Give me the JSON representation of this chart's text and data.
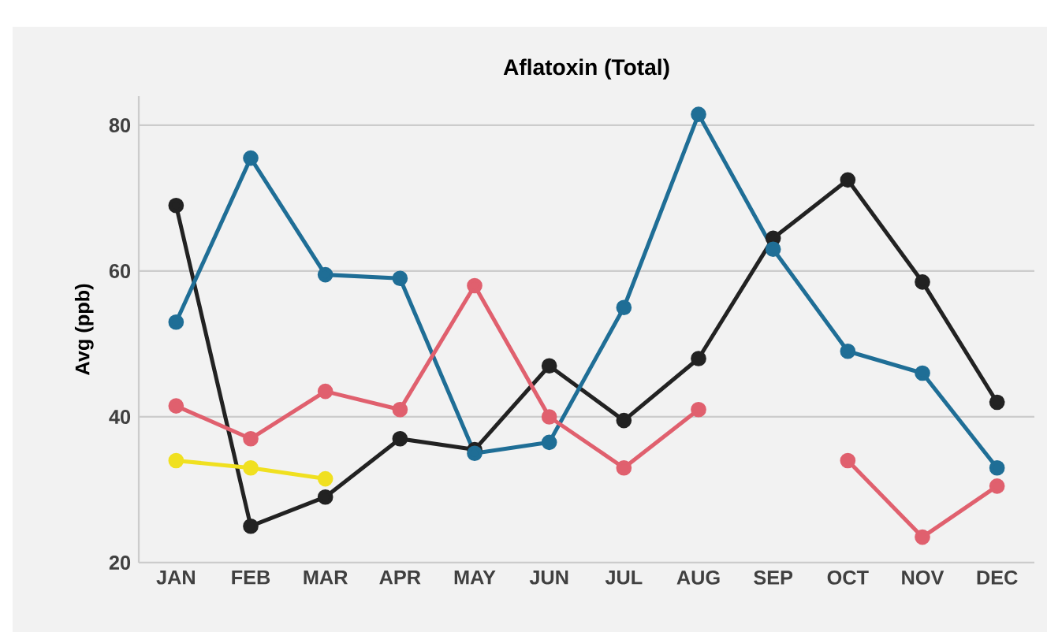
{
  "chart_data": {
    "type": "line",
    "title": "Aflatoxin (Total)",
    "ylabel": "Avg (ppb)",
    "categories": [
      "JAN",
      "FEB",
      "MAR",
      "APR",
      "MAY",
      "JUN",
      "JUL",
      "AUG",
      "SEP",
      "OCT",
      "NOV",
      "DEC"
    ],
    "series": [
      {
        "color": "#222222",
        "values": [
          69,
          25,
          29,
          37,
          35.5,
          47,
          39.5,
          48,
          64.5,
          72.5,
          58.5,
          42
        ]
      },
      {
        "color": "#1f6e96",
        "values": [
          53,
          75.5,
          59.5,
          59,
          35,
          36.5,
          55,
          81.5,
          63,
          49,
          46,
          33
        ]
      },
      {
        "color": "#e0606e",
        "values": [
          41.5,
          37,
          43.5,
          41,
          58,
          40,
          33,
          41,
          null,
          34,
          23.5,
          30.5
        ]
      },
      {
        "color": "#f0e020",
        "values": [
          34,
          33,
          31.5,
          null,
          null,
          null,
          null,
          null,
          null,
          null,
          null,
          null
        ]
      }
    ],
    "ylim": [
      20,
      84
    ],
    "yticks": [
      20,
      40,
      60,
      80
    ],
    "grid": "y",
    "marker": "circle",
    "line_style": "solid"
  }
}
